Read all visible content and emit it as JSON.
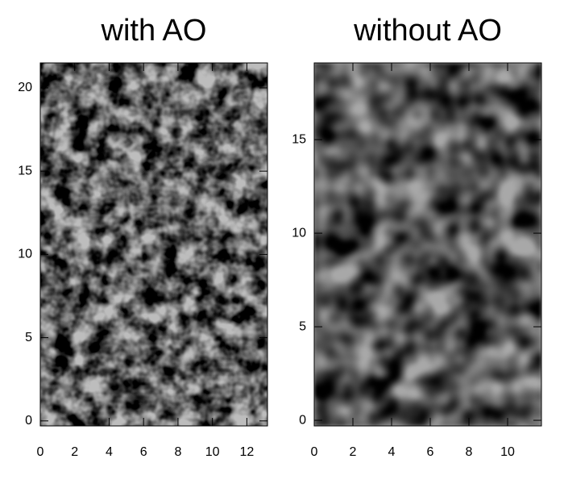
{
  "chart_data": [
    {
      "type": "image",
      "title": "with AO",
      "xlim": [
        0,
        13.2
      ],
      "ylim": [
        -0.3,
        21.5
      ],
      "xticks": [
        0,
        2,
        4,
        6,
        8,
        10,
        12
      ],
      "yticks": [
        0,
        5,
        10,
        15,
        20
      ]
    },
    {
      "type": "image",
      "title": "without AO",
      "xlim": [
        0,
        11.75
      ],
      "ylim": [
        -0.3,
        19.1
      ],
      "xticks": [
        0,
        2,
        4,
        6,
        8,
        10
      ],
      "yticks": [
        0,
        5,
        10,
        15
      ]
    }
  ]
}
